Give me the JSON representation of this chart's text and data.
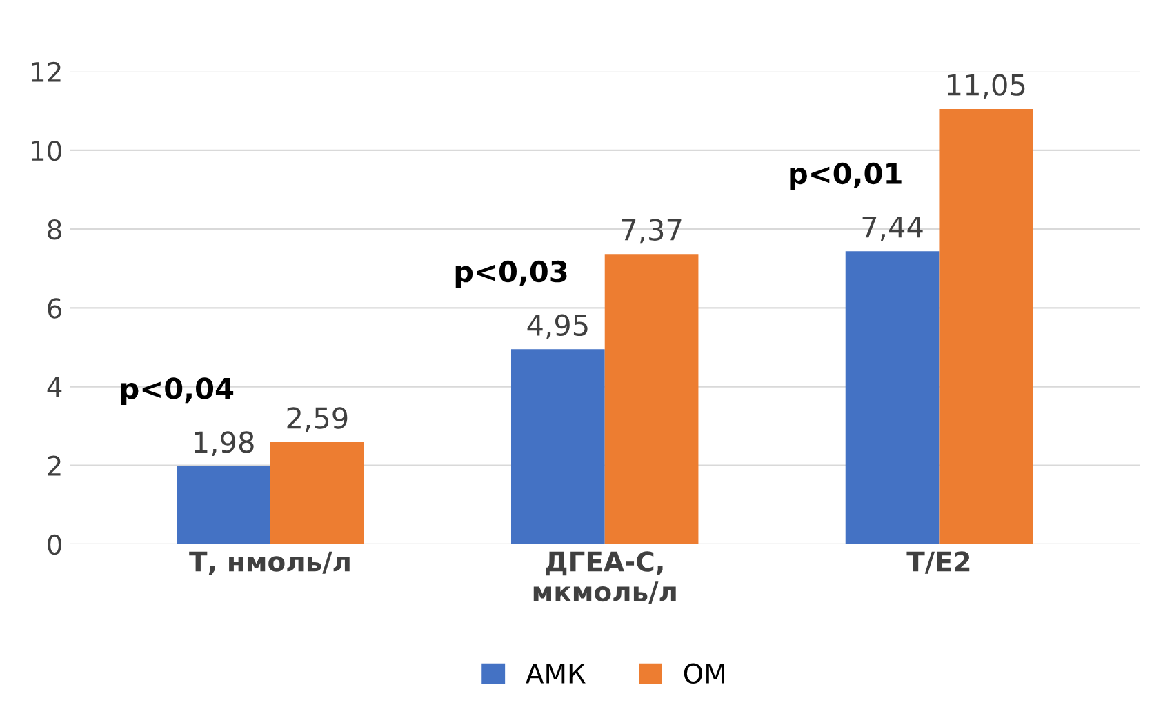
{
  "chart_data": {
    "type": "bar",
    "categories": [
      "Т, нмоль/л",
      "ДГЕА-С,\nмкмоль/л",
      "Т/Е2"
    ],
    "series": [
      {
        "name": "АМК",
        "color": "#4472c4",
        "values": [
          1.98,
          4.95,
          7.44
        ],
        "value_labels": [
          "1,98",
          "4,95",
          "7,44"
        ]
      },
      {
        "name": "ОМ",
        "color": "#ed7d31",
        "values": [
          2.59,
          7.37,
          11.05
        ],
        "value_labels": [
          "2,59",
          "7,37",
          "11,05"
        ]
      }
    ],
    "ylim": [
      0,
      12
    ],
    "yticks": [
      0,
      2,
      4,
      6,
      8,
      10,
      12
    ],
    "grid": "y",
    "legend": "bottom",
    "annotations": [
      "p<0,04",
      "p<0,03",
      "p<0,01"
    ]
  }
}
